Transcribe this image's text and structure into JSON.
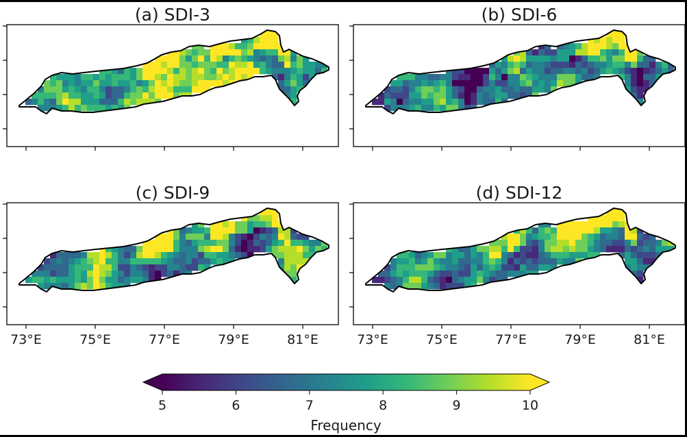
{
  "figure": {
    "panels": [
      {
        "title": "(a) SDI-3",
        "seed": 11,
        "bias": 0.1
      },
      {
        "title": "(b) SDI-6",
        "seed": 23,
        "bias": 0.0
      },
      {
        "title": "(c) SDI-9",
        "seed": 37,
        "bias": 0.05
      },
      {
        "title": "(d) SDI-12",
        "seed": 51,
        "bias": 0.02
      }
    ],
    "lon_ticks": [
      "73°E",
      "75°E",
      "77°E",
      "79°E",
      "81°E"
    ],
    "colorbar": {
      "label": "Frequency",
      "ticks": [
        "5",
        "6",
        "7",
        "8",
        "9",
        "10"
      ],
      "min": 5,
      "max": 10,
      "extend": "both",
      "colormap": "viridis"
    },
    "colors": {
      "background_outer": "#000000",
      "background_figure": "#ffffff",
      "boundary": "#000000",
      "viridis": [
        "#440154",
        "#482878",
        "#3e4989",
        "#31688e",
        "#26828e",
        "#1f9e89",
        "#35b779",
        "#6ece58",
        "#b5de2b",
        "#fde725"
      ]
    }
  }
}
